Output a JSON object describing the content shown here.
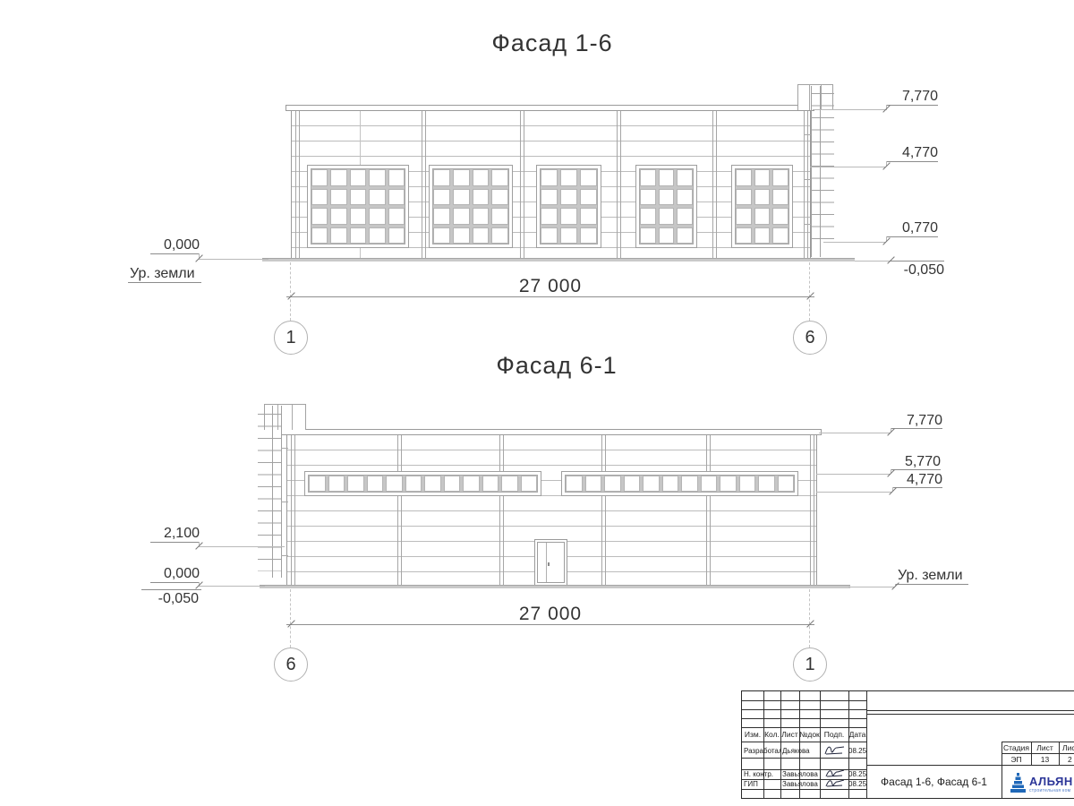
{
  "colors": {
    "line": "#a9a9a9",
    "text": "#333333",
    "brand_blue": "#2b3598",
    "logo_blue": "#2068b8"
  },
  "facades": {
    "top": {
      "title": "Фасад 1-6",
      "dimension": "27 000",
      "axis_left": "1",
      "axis_right": "6",
      "marks_right": [
        "7,770",
        "4,770",
        "0,770",
        "-0,050"
      ],
      "mark_zero": "0,000",
      "ground_label": "Ур. земли"
    },
    "bottom": {
      "title": "Фасад 6-1",
      "dimension": "27 000",
      "axis_left": "6",
      "axis_right": "1",
      "marks_left": [
        "2,100",
        "0,000",
        "-0,050"
      ],
      "marks_right": [
        "7,770",
        "5,770",
        "4,770"
      ],
      "ground_label": "Ур. земли"
    }
  },
  "titleblock": {
    "cols": [
      "Изм.",
      "Кол.",
      "Лист",
      "№док",
      "Подп.",
      "Дата"
    ],
    "rows": [
      {
        "role": "Разработал",
        "name": "Дьякова",
        "date": "08.25"
      },
      {
        "role": "Н. контр.",
        "name": "Завьялова",
        "date": "08.25"
      },
      {
        "role": "ГИП",
        "name": "Завьялова",
        "date": "08.25"
      }
    ],
    "doc_title": "Фасад 1-6, Фасад 6-1",
    "stage_label": "Стадия",
    "sheet_label": "Лист",
    "sheets_label": "Лис",
    "stage_value": "ЭП",
    "sheet_value": "13",
    "sheets_value": "2",
    "brand": "АЛЬЯН",
    "brand_sub": "строительная ком"
  }
}
